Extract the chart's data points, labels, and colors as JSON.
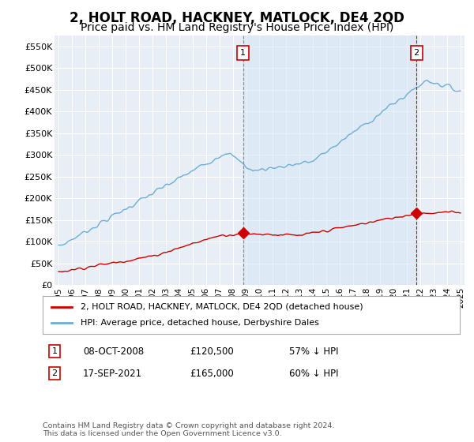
{
  "title": "2, HOLT ROAD, HACKNEY, MATLOCK, DE4 2QD",
  "subtitle": "Price paid vs. HM Land Registry's House Price Index (HPI)",
  "title_fontsize": 12,
  "subtitle_fontsize": 10,
  "ylim": [
    0,
    575000
  ],
  "yticks": [
    0,
    50000,
    100000,
    150000,
    200000,
    250000,
    300000,
    350000,
    400000,
    450000,
    500000,
    550000
  ],
  "ytick_labels": [
    "£0",
    "£50K",
    "£100K",
    "£150K",
    "£200K",
    "£250K",
    "£300K",
    "£350K",
    "£400K",
    "£450K",
    "£500K",
    "£550K"
  ],
  "hpi_color": "#6baed6",
  "price_color": "#cc0000",
  "sale1_date": "08-OCT-2008",
  "sale1_price": 120500,
  "sale1_label": "57% ↓ HPI",
  "sale1_x": 2008.78,
  "sale2_date": "17-SEP-2021",
  "sale2_price": 165000,
  "sale2_label": "60% ↓ HPI",
  "sale2_x": 2021.71,
  "legend_line1": "2, HOLT ROAD, HACKNEY, MATLOCK, DE4 2QD (detached house)",
  "legend_line2": "HPI: Average price, detached house, Derbyshire Dales",
  "footnote": "Contains HM Land Registry data © Crown copyright and database right 2024.\nThis data is licensed under the Open Government Licence v3.0.",
  "bg_color": "#ffffff",
  "plot_bg_color": "#e8eef5",
  "grid_color": "#ffffff",
  "shade_color": "#d0e4f5",
  "xtick_years": [
    "1995",
    "1996",
    "1997",
    "1998",
    "1999",
    "2000",
    "2001",
    "2002",
    "2003",
    "2004",
    "2005",
    "2006",
    "2007",
    "2008",
    "2009",
    "2010",
    "2011",
    "2012",
    "2013",
    "2014",
    "2015",
    "2016",
    "2017",
    "2018",
    "2019",
    "2020",
    "2021",
    "2022",
    "2023",
    "2024",
    "2025"
  ]
}
